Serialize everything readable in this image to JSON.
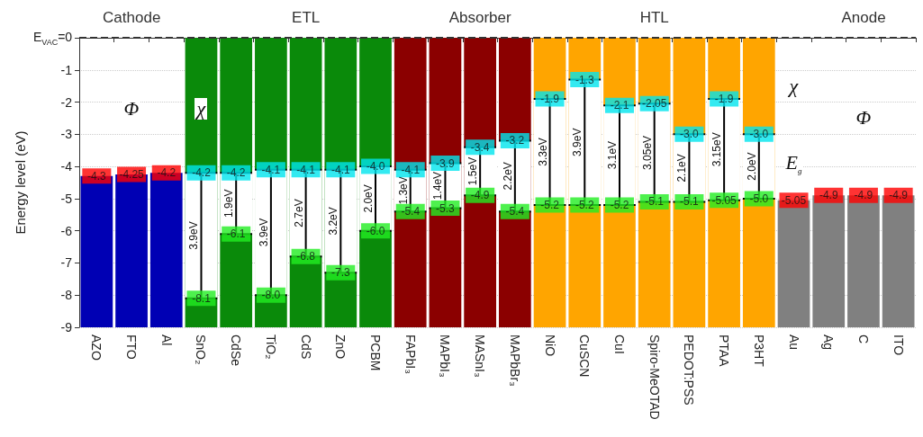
{
  "chart_data": {
    "type": "bar",
    "ylabel": "Energy level (eV)",
    "ylim": [
      -9,
      0
    ],
    "yticks": [
      {
        "value": 0,
        "label": "E$_{VAC}$=0"
      },
      -1,
      -2,
      -3,
      -4,
      -5,
      -6,
      -7,
      -8,
      -9
    ],
    "grid": "y",
    "legend": false,
    "marker": "square",
    "categories": [
      "AZO",
      "FTO",
      "Al",
      "SnO₂",
      "CdSe",
      "TiO₂",
      "CdS",
      "ZnO",
      "PCBM",
      "FAPbI₃",
      "MAPbI₃",
      "MASnI₃",
      "MAPbBr₃",
      "NiO",
      "CuSCN",
      "CuI",
      "Spiro-MeOTAD",
      "PEDOT:PSS",
      "PTAA",
      "P3HT",
      "Au",
      "Ag",
      "C",
      "ITO"
    ],
    "ref_lines": [
      {
        "axis": "y",
        "value": 0,
        "label": null,
        "line_style": "dashed",
        "color": "#333333"
      }
    ],
    "series": [
      {
        "colors": [
          "#0000b4",
          "#0000b4",
          "#0000b4",
          "#0a8a0a",
          "#0a8a0a",
          "#0a8a0a",
          "#0a8a0a",
          "#0a8a0a",
          "#0a8a0a",
          "#8b0000",
          "#8b0000",
          "#8b0000",
          "#8b0000",
          "#ffa500",
          "#ffa500",
          "#ffa500",
          "#ffa500",
          "#ffa500",
          "#ffa500",
          "#ffa500",
          "#808080",
          "#808080",
          "#808080",
          "#808080"
        ],
        "base": [
          -9,
          -9,
          -9,
          -9,
          -9,
          -9,
          -9,
          -9,
          -9,
          -9,
          -9,
          -9,
          -9,
          -9,
          -9,
          -9,
          -9,
          -9,
          -9,
          -9,
          -9,
          -9,
          -9,
          -9
        ],
        "values": [
          4.7,
          4.75,
          4.8,
          9,
          9,
          9,
          9,
          9,
          9,
          9,
          9,
          9,
          9,
          9,
          9,
          9,
          9,
          9,
          9,
          9,
          3.95,
          4.1,
          4.1,
          4.1
        ]
      },
      {
        "color": "#ffffff",
        "base": [
          null,
          null,
          null,
          -8.1,
          -6.1,
          -8.0,
          -6.8,
          -7.3,
          -6.0,
          -5.4,
          -5.3,
          -4.9,
          -5.4,
          -5.2,
          -5.2,
          -5.2,
          -5.1,
          -5.1,
          -5.05,
          -5.0,
          null,
          null,
          null,
          null
        ],
        "values": [
          null,
          null,
          null,
          3.9,
          1.9,
          3.9,
          2.7,
          3.2,
          2.0,
          1.3,
          1.4,
          1.5,
          2.2,
          3.3,
          3.9,
          3.1,
          3.05,
          2.1,
          3.15,
          2.0,
          null,
          null,
          null,
          null
        ],
        "value_labels": [
          null,
          null,
          null,
          "3.9eV",
          "1.9eV",
          "3.9eV",
          "2.7eV",
          "3.2eV",
          "2.0eV",
          "1.3eV",
          "1.4eV",
          "1.5eV",
          "2.2eV",
          "3.3eV",
          "3.9eV",
          "3.1eV",
          "3.05eV",
          "2.1eV",
          "3.15eV",
          "2.0eV",
          null,
          null,
          null,
          null
        ]
      },
      {
        "type": "scatter",
        "color": "#ff0000",
        "values": [
          -4.3,
          -4.25,
          -4.2,
          null,
          null,
          null,
          null,
          null,
          null,
          null,
          null,
          null,
          null,
          null,
          null,
          null,
          null,
          null,
          null,
          null,
          -5.05,
          -4.9,
          -4.9,
          -4.9
        ],
        "value_labels": [
          "-4.3",
          "-4.25",
          "-4.2",
          null,
          null,
          null,
          null,
          null,
          null,
          null,
          null,
          null,
          null,
          null,
          null,
          null,
          null,
          null,
          null,
          null,
          "-5.05",
          "-4.9",
          "-4.9",
          "-4.9"
        ]
      },
      {
        "type": "scatter",
        "color": "#00e5ee",
        "values": [
          null,
          null,
          null,
          -4.2,
          -4.2,
          -4.1,
          -4.1,
          -4.1,
          -4.0,
          -4.1,
          -3.9,
          -3.4,
          -3.2,
          -1.9,
          -1.3,
          -2.1,
          -2.05,
          -3.0,
          -1.9,
          -3.0,
          null,
          null,
          null,
          null
        ],
        "value_labels": [
          null,
          null,
          null,
          "-4.2",
          "-4.2",
          "-4.1",
          "-4.1",
          "-4.1",
          "-4.0",
          "-4.1",
          "-3.9",
          "-3.4",
          "-3.2",
          "-1.9",
          "-1.3",
          "-2.1",
          "-2.05",
          "-3.0",
          "-1.9",
          "-3.0",
          null,
          null,
          null,
          null
        ]
      },
      {
        "type": "scatter",
        "color": "#22ee22",
        "values": [
          null,
          null,
          null,
          -8.1,
          -6.1,
          -8.0,
          -6.8,
          -7.3,
          -6.0,
          -5.4,
          -5.3,
          -4.9,
          -5.4,
          -5.2,
          -5.2,
          -5.2,
          -5.1,
          -5.1,
          -5.05,
          -5.0,
          null,
          null,
          null,
          null
        ],
        "value_labels": [
          null,
          null,
          null,
          "-8.1",
          "-6.1",
          "-8.0",
          "-6.8",
          "-7.3",
          "-6.0",
          "-5.4",
          "-5.3",
          "-4.9",
          "-5.4",
          "-5.2",
          "-5.2",
          "-5.2",
          "-5.1",
          "-5.1",
          "-5.05",
          "-5.0",
          null,
          null,
          null,
          null
        ]
      }
    ],
    "annotations": [
      "Cathode",
      "ETL",
      "Absorber",
      "HTL",
      "Anode",
      {
        "text": "Φ",
        "y": -2.2
      },
      {
        "text": "χ",
        "y": -2.2
      },
      {
        "text": "χ",
        "y": -1.5
      },
      {
        "text": "E$_{g}$",
        "y": -4
      },
      {
        "text": "Φ",
        "y": -2.5
      }
    ]
  }
}
